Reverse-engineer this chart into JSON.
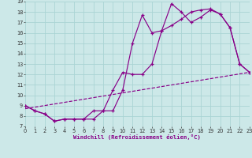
{
  "xlabel": "Windchill (Refroidissement éolien,°C)",
  "bg_color": "#cce8e8",
  "line_color": "#880088",
  "grid_color": "#aad4d4",
  "xlim": [
    0,
    23
  ],
  "ylim": [
    7,
    19
  ],
  "xtick_vals": [
    0,
    1,
    2,
    3,
    4,
    5,
    6,
    7,
    8,
    9,
    10,
    11,
    12,
    13,
    14,
    15,
    16,
    17,
    18,
    19,
    20,
    21,
    22,
    23
  ],
  "ytick_vals": [
    7,
    8,
    9,
    10,
    11,
    12,
    13,
    14,
    15,
    16,
    17,
    18,
    19
  ],
  "line1_x": [
    0,
    1,
    2,
    3,
    4,
    5,
    6,
    7,
    8,
    9,
    10,
    11,
    12,
    13,
    14,
    15,
    16,
    17,
    18,
    19,
    20,
    21,
    22,
    23
  ],
  "line1_y": [
    9.0,
    8.5,
    8.2,
    7.5,
    7.7,
    7.7,
    7.7,
    7.7,
    8.5,
    8.5,
    10.5,
    15.0,
    17.7,
    16.0,
    16.2,
    18.8,
    18.0,
    17.0,
    17.5,
    18.2,
    17.8,
    16.5,
    13.0,
    12.2
  ],
  "line2_x": [
    0,
    1,
    2,
    3,
    4,
    5,
    6,
    7,
    8,
    9,
    10,
    11,
    12,
    13,
    14,
    15,
    16,
    17,
    18,
    19,
    20,
    21,
    22,
    23
  ],
  "line2_y": [
    9.0,
    8.5,
    8.2,
    7.5,
    7.7,
    7.7,
    7.7,
    8.5,
    8.5,
    10.5,
    12.2,
    12.0,
    12.0,
    13.0,
    16.2,
    16.7,
    17.3,
    18.0,
    18.2,
    18.3,
    17.8,
    16.5,
    13.0,
    12.2
  ],
  "line3_x": [
    0,
    23
  ],
  "line3_y": [
    8.7,
    12.2
  ],
  "figwidth": 3.2,
  "figheight": 2.0,
  "dpi": 100
}
